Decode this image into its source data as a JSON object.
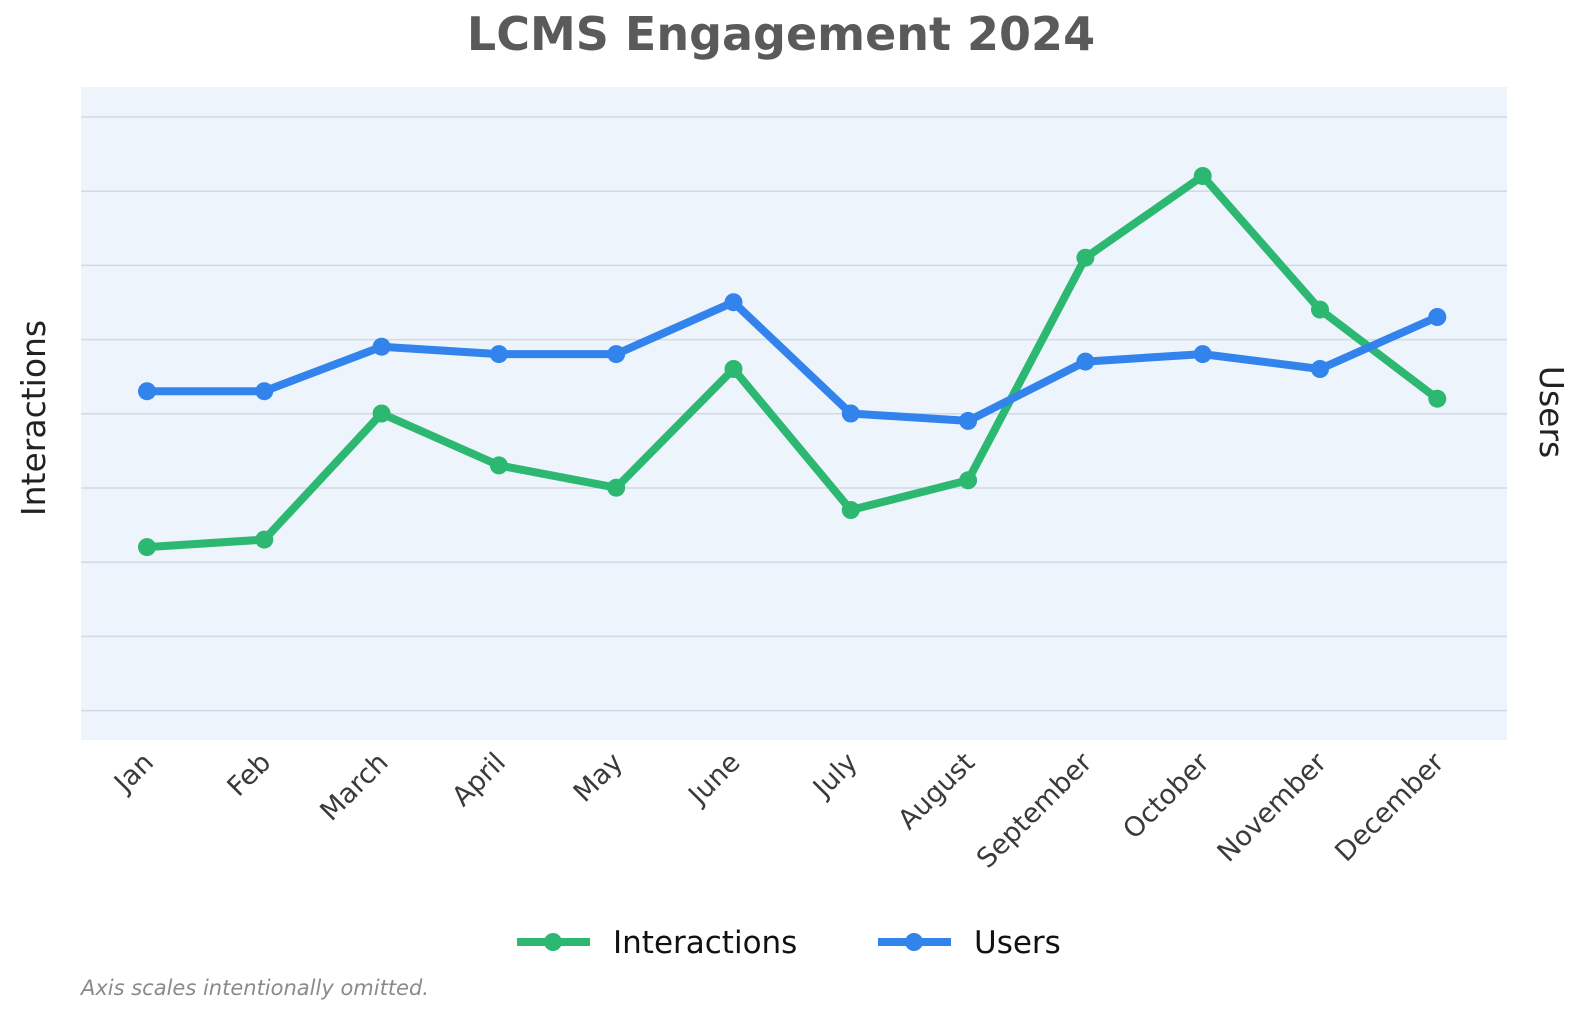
{
  "chart_data": {
    "type": "line",
    "title": "LCMS Engagement 2024",
    "ylabel": "Interactions",
    "y2label": "Users",
    "categories": [
      "Jan",
      "Feb",
      "March",
      "April",
      "May",
      "June",
      "July",
      "August",
      "September",
      "October",
      "November",
      "December"
    ],
    "axis_scales_shown": false,
    "grid": true,
    "legend_position": "bottom-center",
    "background_color": "#eef4fb",
    "gridline_color": "#d3d9e4",
    "series": [
      {
        "name": "Interactions",
        "axis": "left",
        "color": "#2db872",
        "values": [
          24,
          25,
          42,
          35,
          32,
          48,
          29,
          33,
          63,
          74,
          56,
          44
        ]
      },
      {
        "name": "Users",
        "axis": "right",
        "color": "#3383ec",
        "values": [
          55,
          55,
          61,
          60,
          60,
          67,
          52,
          51,
          59,
          60,
          58,
          65
        ]
      }
    ],
    "ylim_left": [
      -2,
      86
    ],
    "ylim_right": [
      8,
      96
    ],
    "footnote": "Axis scales intentionally omitted."
  }
}
